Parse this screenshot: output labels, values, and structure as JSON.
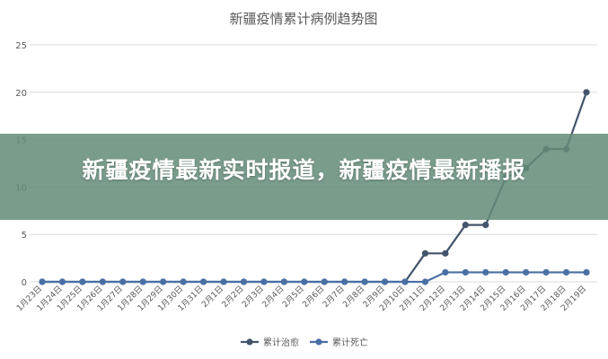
{
  "banner": {
    "headline": "新疆疫情最新实时报道，新疆疫情最新播报"
  },
  "chart_data": {
    "type": "line",
    "title": "新疆疫情累计病例趋势图",
    "xlabel": "",
    "ylabel": "",
    "ylim": [
      0,
      25
    ],
    "yticks": [
      "0",
      "5",
      "10",
      "15",
      "20",
      "25"
    ],
    "grid": true,
    "legend_position": "bottom",
    "categories": [
      "1月23日",
      "1月24日",
      "1月25日",
      "1月26日",
      "1月27日",
      "1月28日",
      "1月29日",
      "1月30日",
      "1月31日",
      "2月1日",
      "2月2日",
      "2月3日",
      "2月4日",
      "2月5日",
      "2月6日",
      "2月7日",
      "2月8日",
      "2月9日",
      "2月10日",
      "2月11日",
      "2月12日",
      "2月13日",
      "2月14日",
      "2月15日",
      "2月16日",
      "2月17日",
      "2月18日",
      "2月19日"
    ],
    "series": [
      {
        "name": "累计治愈",
        "color": "#44546a",
        "values": [
          0,
          0,
          0,
          0,
          0,
          0,
          0,
          0,
          0,
          0,
          0,
          0,
          0,
          0,
          0,
          0,
          0,
          0,
          0,
          3,
          3,
          6,
          6,
          11,
          12,
          14,
          14,
          20
        ]
      },
      {
        "name": "累计死亡",
        "color": "#4a6fa5",
        "values": [
          0,
          0,
          0,
          0,
          0,
          0,
          0,
          0,
          0,
          0,
          0,
          0,
          0,
          0,
          0,
          0,
          0,
          0,
          0,
          0,
          1,
          1,
          1,
          1,
          1,
          1,
          1,
          1
        ]
      }
    ]
  }
}
